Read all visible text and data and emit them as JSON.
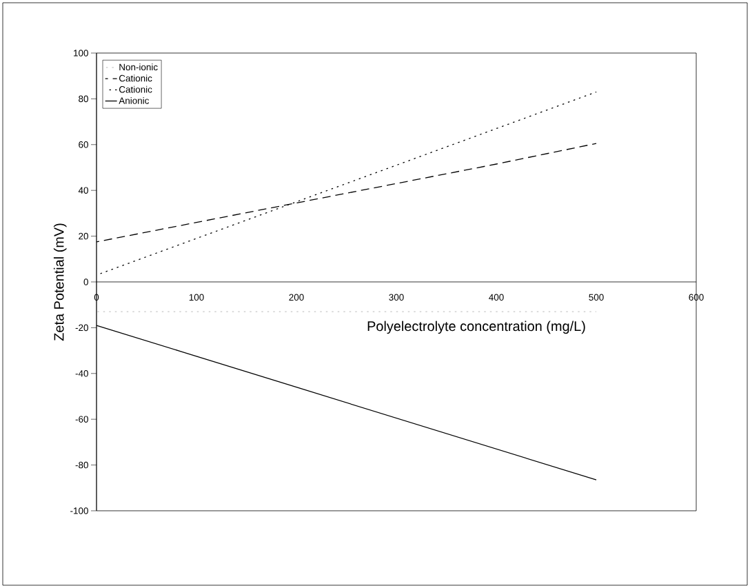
{
  "chart_data": {
    "type": "line",
    "xlabel": "Polyelectrolyte concentration (mg/L)",
    "ylabel": "Zeta Potential (mV)",
    "x": [
      0,
      100,
      200,
      300,
      400,
      500
    ],
    "xlim": [
      0,
      600
    ],
    "xticks": [
      0,
      100,
      200,
      300,
      400,
      500,
      600
    ],
    "ylim": [
      -100,
      100
    ],
    "yticks": [
      -100,
      -80,
      -60,
      -40,
      -20,
      0,
      20,
      40,
      60,
      80,
      100
    ],
    "legend": "top left",
    "grid": false,
    "marker": "none",
    "series": [
      {
        "name": "Non-ionic",
        "color": "#c8c8c8",
        "line_style": "dotted",
        "values": [
          -13,
          -13,
          -13,
          -13,
          -13,
          -13
        ]
      },
      {
        "name": "Cationic",
        "color": "#000000",
        "line_style": "dashed",
        "values": [
          17.5,
          26,
          34.5,
          43,
          51.5,
          60.5
        ]
      },
      {
        "name": "Cationic",
        "color": "#000000",
        "line_style": "dotted",
        "values": [
          3,
          19,
          35,
          51,
          67,
          83
        ]
      },
      {
        "name": "Anionic",
        "color": "#000000",
        "line_style": "solid",
        "values": [
          -19,
          -32.5,
          -46,
          -59.5,
          -73,
          -86.5
        ]
      }
    ]
  }
}
